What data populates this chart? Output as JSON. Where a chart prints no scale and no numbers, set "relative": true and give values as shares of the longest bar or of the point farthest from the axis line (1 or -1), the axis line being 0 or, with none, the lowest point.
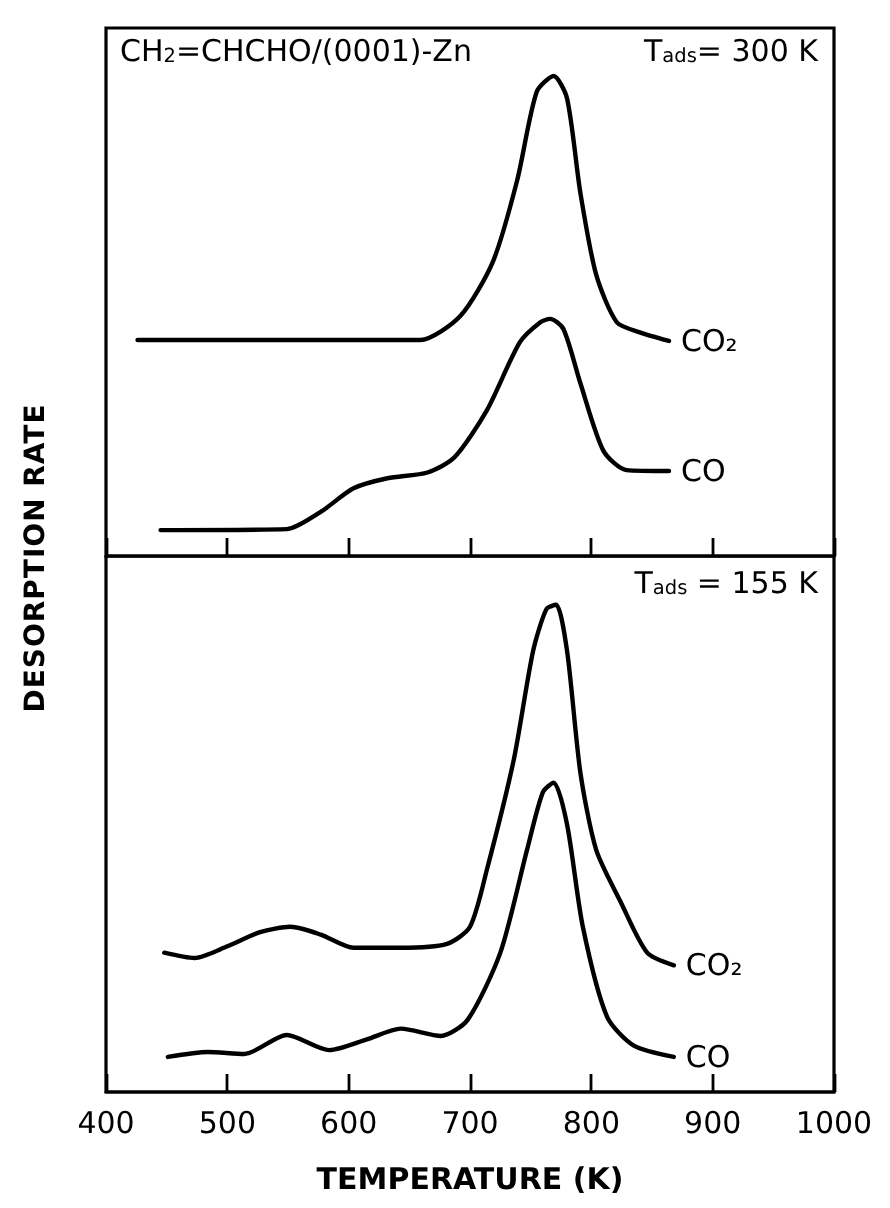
{
  "chart_data": [
    {
      "type": "line",
      "relative": true,
      "xlim": [
        400,
        1000
      ],
      "xticks": [
        400,
        500,
        600,
        700,
        800,
        900,
        1000
      ],
      "tick_labels": false,
      "ylabel": "DESORPTION RATE",
      "annotations": [
        "CH$_{2}$=CHCHO/(0001)-Zn",
        "T$_{ads}$= 300 K"
      ],
      "series": [
        {
          "name": "CO₂",
          "color": "#000000",
          "x": [
            426,
            480,
            560,
            620,
            659,
            692,
            719,
            739,
            755,
            769,
            780,
            791,
            804,
            821,
            840,
            864
          ],
          "values": [
            0.45,
            0.45,
            0.45,
            0.45,
            0.45,
            0.5,
            0.614,
            0.784,
            0.967,
            1.0,
            0.953,
            0.756,
            0.586,
            0.487,
            0.466,
            0.448
          ]
        },
        {
          "name": "CO",
          "color": "#000000",
          "x": [
            445,
            549,
            577,
            604,
            632,
            665,
            687,
            714,
            741,
            758,
            766,
            777,
            791,
            810,
            829,
            864
          ],
          "values": [
            0.054,
            0.056,
            0.092,
            0.141,
            0.162,
            0.174,
            0.205,
            0.304,
            0.445,
            0.487,
            0.494,
            0.473,
            0.36,
            0.219,
            0.179,
            0.177
          ]
        }
      ]
    },
    {
      "type": "line",
      "relative": true,
      "xlim": [
        400,
        1000
      ],
      "xticks": [
        400,
        500,
        600,
        700,
        800,
        900,
        1000
      ],
      "tick_labels": "x",
      "xlabel": "TEMPERATURE (K)",
      "annotations": [
        "T$_{ads}$ = 155 K"
      ],
      "series": [
        {
          "name": "CO₂",
          "color": "#000000",
          "x": [
            448,
            473,
            500,
            527,
            552,
            577,
            604,
            643,
            681,
            700,
            714,
            736,
            752,
            763,
            771,
            780,
            791,
            804,
            824,
            846,
            868
          ],
          "values": [
            0.286,
            0.275,
            0.299,
            0.328,
            0.339,
            0.323,
            0.296,
            0.296,
            0.304,
            0.339,
            0.457,
            0.681,
            0.905,
            0.991,
            1.0,
            0.905,
            0.655,
            0.497,
            0.391,
            0.286,
            0.26
          ]
        },
        {
          "name": "CO",
          "color": "#000000",
          "x": [
            451,
            484,
            514,
            549,
            584,
            615,
            643,
            676,
            698,
            725,
            747,
            760,
            769,
            780,
            793,
            813,
            835,
            868
          ],
          "values": [
            0.072,
            0.082,
            0.078,
            0.117,
            0.086,
            0.108,
            0.13,
            0.115,
            0.148,
            0.286,
            0.497,
            0.615,
            0.635,
            0.549,
            0.339,
            0.154,
            0.095,
            0.072
          ]
        }
      ]
    }
  ]
}
